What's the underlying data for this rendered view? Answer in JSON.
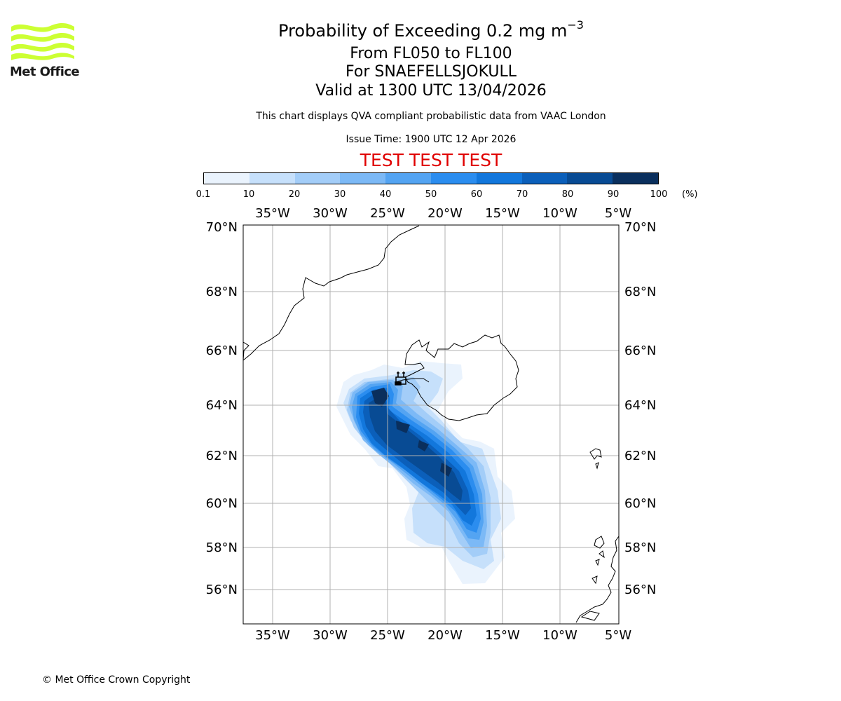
{
  "header": {
    "title_main": "Probability of Exceeding 0.2 mg m",
    "title_exponent": "−3",
    "title_levels": "From FL050 to FL100",
    "title_volcano": "For SNAEFELLSJOKULL",
    "title_valid": "Valid at 1300 UTC 13/04/2026",
    "subtitle": "This chart displays QVA compliant probabilistic data from VAAC London",
    "issue_time": "Issue Time: 1900 UTC 12 Apr 2026",
    "test_banner": "TEST TEST TEST"
  },
  "logo": {
    "text": "Met Office",
    "color": "#ccff33"
  },
  "colorbar": {
    "ticks": [
      "0.1",
      "10",
      "20",
      "30",
      "40",
      "50",
      "60",
      "70",
      "80",
      "90",
      "100"
    ],
    "unit": "(%)",
    "colors": [
      "#eaf3fd",
      "#c6e0fb",
      "#a3cdf8",
      "#7cb9f6",
      "#54a4f2",
      "#2b8def",
      "#1277dc",
      "#0b5fba",
      "#084b94",
      "#0a2f5d"
    ]
  },
  "map": {
    "lon_labels": [
      "35°W",
      "30°W",
      "25°W",
      "20°W",
      "15°W",
      "10°W",
      "5°W"
    ],
    "lat_labels": [
      "70°N",
      "68°N",
      "66°N",
      "64°N",
      "62°N",
      "60°N",
      "58°N",
      "56°N"
    ],
    "grid": true,
    "source_marker": "volcano-symbol"
  },
  "footer": {
    "copyright": "© Met Office Crown Copyright"
  }
}
